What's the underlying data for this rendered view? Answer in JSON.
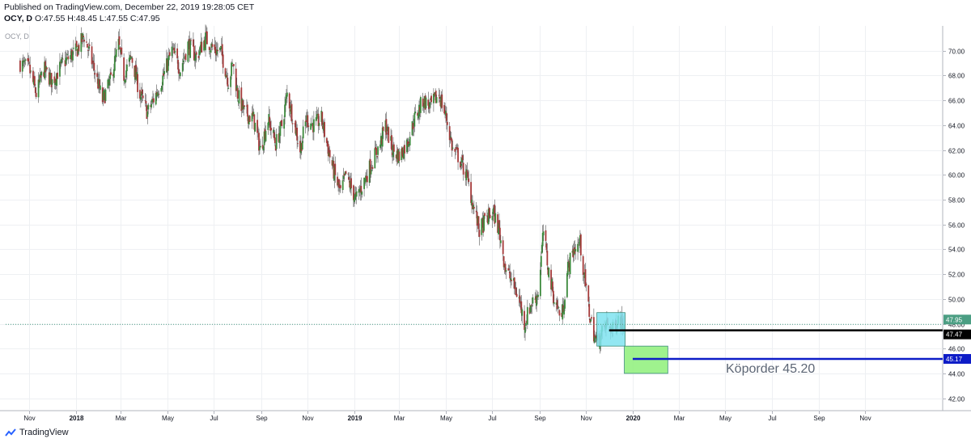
{
  "header": {
    "published": "Published on TradingView.com, December 22, 2019 19:28:05 CET",
    "symbol": "OCY, D",
    "ohlc": "O:47.55 H:48.45 L:47.55 C:47.95"
  },
  "watermark": "OCY, D",
  "footer": {
    "brand": "TradingView"
  },
  "colors": {
    "up": "#3c8a3c",
    "down": "#a53a3a",
    "grid": "#eef0f3",
    "last_price": "#4b9e83",
    "black_line": "#000000",
    "blue_line": "#0d1cc7",
    "cyan_box": "#7fe3f0",
    "green_box": "#8ef07a"
  },
  "annotation": {
    "text": "Köporder 45.20"
  },
  "price_labels": {
    "last": "47.95",
    "black": "47.47",
    "blue": "45.17"
  },
  "chart_data": {
    "type": "candlestick",
    "title": "",
    "xlabel": "",
    "ylabel": "",
    "ylim": [
      41,
      72
    ],
    "grid": true,
    "y_ticks": [
      "42.00",
      "44.00",
      "46.00",
      "48.00",
      "50.00",
      "52.00",
      "54.00",
      "56.00",
      "58.00",
      "60.00",
      "62.00",
      "64.00",
      "66.00",
      "68.00",
      "70.00"
    ],
    "x_ticks": [
      "Nov",
      "2018",
      "Mar",
      "May",
      "Jul",
      "Sep",
      "Nov",
      "2019",
      "Mar",
      "May",
      "Jul",
      "Sep",
      "Nov",
      "2020",
      "Mar",
      "May",
      "Jul",
      "Sep",
      "Nov"
    ],
    "x_tick_bold": [
      "2018",
      "2019",
      "2020"
    ],
    "close_path": [
      [
        "2017-10-20",
        69.0
      ],
      [
        "2017-11-01",
        68.5
      ],
      [
        "2017-11-10",
        66.5
      ],
      [
        "2017-11-20",
        68.5
      ],
      [
        "2017-12-01",
        67.5
      ],
      [
        "2017-12-15",
        69.0
      ],
      [
        "2018-01-02",
        70.0
      ],
      [
        "2018-01-12",
        71.2
      ],
      [
        "2018-01-25",
        68.5
      ],
      [
        "2018-02-05",
        66.0
      ],
      [
        "2018-02-15",
        67.5
      ],
      [
        "2018-02-26",
        70.5
      ],
      [
        "2018-03-05",
        68.0
      ],
      [
        "2018-03-15",
        69.5
      ],
      [
        "2018-03-26",
        66.5
      ],
      [
        "2018-04-05",
        65.0
      ],
      [
        "2018-04-16",
        66.5
      ],
      [
        "2018-04-26",
        68.0
      ],
      [
        "2018-05-07",
        70.0
      ],
      [
        "2018-05-18",
        68.5
      ],
      [
        "2018-05-28",
        70.5
      ],
      [
        "2018-06-08",
        69.5
      ],
      [
        "2018-06-20",
        71.0
      ],
      [
        "2018-07-02",
        70.0
      ],
      [
        "2018-07-10",
        70.0
      ],
      [
        "2018-07-20",
        67.5
      ],
      [
        "2018-07-26",
        69.0
      ],
      [
        "2018-08-01",
        66.5
      ],
      [
        "2018-08-10",
        65.0
      ],
      [
        "2018-08-22",
        64.5
      ],
      [
        "2018-08-31",
        62.0
      ],
      [
        "2018-09-10",
        64.5
      ],
      [
        "2018-09-20",
        62.5
      ],
      [
        "2018-09-28",
        64.0
      ],
      [
        "2018-10-05",
        66.5
      ],
      [
        "2018-10-15",
        64.0
      ],
      [
        "2018-10-22",
        62.0
      ],
      [
        "2018-10-30",
        64.5
      ],
      [
        "2018-11-09",
        64.0
      ],
      [
        "2018-11-19",
        64.5
      ],
      [
        "2018-11-28",
        62.0
      ],
      [
        "2018-12-06",
        60.0
      ],
      [
        "2018-12-14",
        58.5
      ],
      [
        "2018-12-21",
        60.0
      ],
      [
        "2019-01-03",
        58.0
      ],
      [
        "2019-01-14",
        59.5
      ],
      [
        "2019-01-24",
        61.0
      ],
      [
        "2019-02-04",
        62.5
      ],
      [
        "2019-02-11",
        64.0
      ],
      [
        "2019-02-20",
        62.0
      ],
      [
        "2019-03-01",
        61.5
      ],
      [
        "2019-03-11",
        62.5
      ],
      [
        "2019-03-21",
        64.5
      ],
      [
        "2019-04-01",
        66.0
      ],
      [
        "2019-04-11",
        65.5
      ],
      [
        "2019-04-22",
        66.5
      ],
      [
        "2019-05-02",
        64.5
      ],
      [
        "2019-05-10",
        62.0
      ],
      [
        "2019-05-17",
        61.5
      ],
      [
        "2019-05-28",
        60.0
      ],
      [
        "2019-06-06",
        57.5
      ],
      [
        "2019-06-14",
        55.5
      ],
      [
        "2019-06-24",
        56.5
      ],
      [
        "2019-07-02",
        57.0
      ],
      [
        "2019-07-10",
        55.5
      ],
      [
        "2019-07-18",
        52.5
      ],
      [
        "2019-07-26",
        51.5
      ],
      [
        "2019-08-05",
        50.0
      ],
      [
        "2019-08-12",
        48.0
      ],
      [
        "2019-08-20",
        49.5
      ],
      [
        "2019-08-30",
        50.5
      ],
      [
        "2019-09-06",
        55.5
      ],
      [
        "2019-09-12",
        52.5
      ],
      [
        "2019-09-20",
        50.0
      ],
      [
        "2019-09-30",
        48.5
      ],
      [
        "2019-10-08",
        52.5
      ],
      [
        "2019-10-16",
        54.0
      ],
      [
        "2019-10-24",
        54.5
      ],
      [
        "2019-10-30",
        51.5
      ],
      [
        "2019-11-06",
        48.5
      ],
      [
        "2019-11-14",
        46.5
      ],
      [
        "2019-11-20",
        47.0
      ],
      [
        "2019-11-28",
        48.0
      ],
      [
        "2019-12-06",
        47.5
      ],
      [
        "2019-12-13",
        48.5
      ],
      [
        "2019-12-20",
        47.95
      ]
    ],
    "horizontal_lines": [
      {
        "price": 47.95,
        "style": "dotted",
        "color_key": "last_price",
        "from": "2017-10-01",
        "to": "2021-01-01"
      },
      {
        "price": 47.47,
        "style": "solid",
        "color_key": "black_line",
        "from": "2019-12-01",
        "to": "2021-01-01"
      },
      {
        "price": 45.17,
        "style": "solid",
        "color_key": "blue_line",
        "from": "2020-01-01",
        "to": "2021-01-01"
      }
    ],
    "boxes": [
      {
        "from": "2019-11-15",
        "to": "2019-12-22",
        "low": 46.2,
        "high": 48.9,
        "color_key": "cyan_box"
      },
      {
        "from": "2019-12-21",
        "to": "2020-02-16",
        "low": 44.0,
        "high": 46.2,
        "color_key": "green_box"
      }
    ]
  }
}
